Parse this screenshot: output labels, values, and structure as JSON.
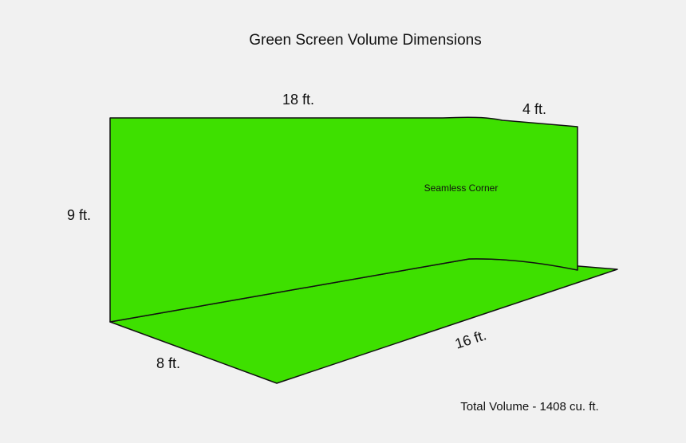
{
  "title": "Green Screen Volume Dimensions",
  "labels": {
    "width_top": "18 ft.",
    "side_top": "4 ft.",
    "height": "9 ft.",
    "depth": "8 ft.",
    "floor_length": "16 ft.",
    "corner": "Seamless Corner"
  },
  "total_volume": "Total Volume - 1408 cu. ft.",
  "colors": {
    "screen": "#3ee000",
    "outline": "#111111",
    "background": "#f1f1f1"
  }
}
